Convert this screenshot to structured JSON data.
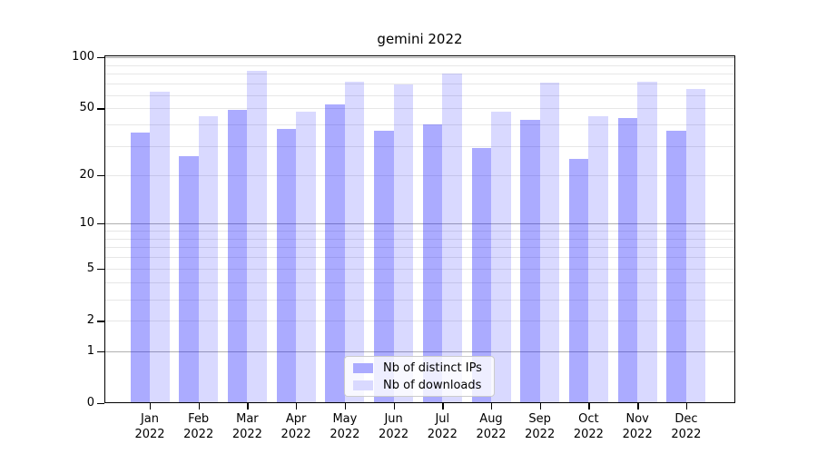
{
  "title": "gemini 2022",
  "legend": {
    "items": [
      {
        "label": "Nb of distinct IPs"
      },
      {
        "label": "Nb of downloads"
      }
    ]
  },
  "x_axis": {
    "year": "2022",
    "months": [
      "Jan",
      "Feb",
      "Mar",
      "Apr",
      "May",
      "Jun",
      "Jul",
      "Aug",
      "Sep",
      "Oct",
      "Nov",
      "Dec"
    ]
  },
  "y_axis": {
    "tick_labels": [
      "0",
      "1",
      "2",
      "5",
      "10",
      "20",
      "50",
      "100"
    ],
    "tick_values": [
      0,
      1,
      2,
      5,
      10,
      20,
      50,
      100
    ],
    "major_grid_values": [
      1,
      10,
      100
    ],
    "minor_grid_values": [
      2,
      3,
      4,
      5,
      6,
      7,
      8,
      9,
      20,
      30,
      40,
      50,
      60,
      70,
      80,
      90
    ],
    "major_grid_color": "#b0b0b0",
    "minor_grid_color": "#e7e7e7",
    "scale": "log(1+x)"
  },
  "chart_data": {
    "type": "bar",
    "title": "gemini 2022",
    "categories": [
      "Jan 2022",
      "Feb 2022",
      "Mar 2022",
      "Apr 2022",
      "May 2022",
      "Jun 2022",
      "Jul 2022",
      "Aug 2022",
      "Sep 2022",
      "Oct 2022",
      "Nov 2022",
      "Dec 2022"
    ],
    "series": [
      {
        "name": "Nb of distinct IPs",
        "color": "#ababff",
        "fill": "rgba(0,0,255,0.33)",
        "values": [
          36,
          26,
          49,
          38,
          53,
          37,
          40,
          29,
          43,
          25,
          44,
          37
        ]
      },
      {
        "name": "Nb of downloads",
        "color": "#d9d9ff",
        "fill": "rgba(0,0,255,0.15)",
        "values": [
          63,
          45,
          83,
          48,
          72,
          69,
          80,
          48,
          71,
          45,
          72,
          65
        ]
      }
    ],
    "xlabel": "",
    "ylabel": "",
    "yscale": "log1p",
    "ylim": [
      0,
      101
    ],
    "yticks": [
      0,
      1,
      2,
      5,
      10,
      20,
      50,
      100
    ],
    "grid": true,
    "legend_position": "lower center"
  }
}
